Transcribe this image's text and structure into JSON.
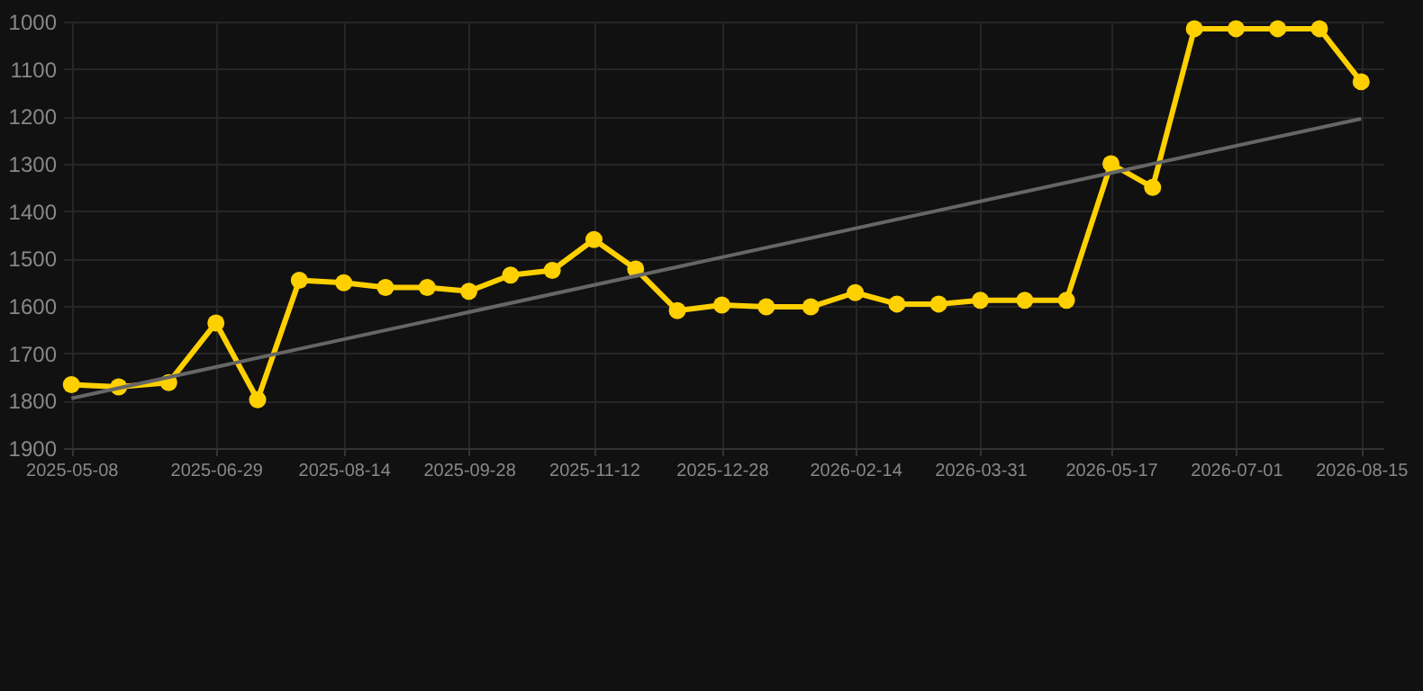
{
  "chart_data": {
    "type": "line",
    "x": [
      "2025-05-08",
      "2025-05-25",
      "2025-06-12",
      "2025-06-29",
      "2025-07-14",
      "2025-07-29",
      "2025-08-14",
      "2025-08-29",
      "2025-09-13",
      "2025-09-28",
      "2025-10-13",
      "2025-10-28",
      "2025-11-12",
      "2025-11-27",
      "2025-12-12",
      "2025-12-28",
      "2026-01-13",
      "2026-01-29",
      "2026-02-14",
      "2026-03-01",
      "2026-03-16",
      "2026-03-31",
      "2026-04-16",
      "2026-05-01",
      "2026-05-17",
      "2026-06-01",
      "2026-06-16",
      "2026-07-01",
      "2026-07-16",
      "2026-07-31",
      "2026-08-15"
    ],
    "series": [
      {
        "color": "#ffd000",
        "marker": "circle",
        "values": [
          1766,
          1771,
          1762,
          1636,
          1798,
          1546,
          1551,
          1561,
          1561,
          1569,
          1535,
          1525,
          1460,
          1522,
          1610,
          1598,
          1602,
          1602,
          1572,
          1596,
          1596,
          1588,
          1588,
          1588,
          1300,
          1350,
          1015,
          1015,
          1015,
          1015,
          1127
        ]
      },
      {
        "color": "#666666",
        "marker": "none",
        "x": [
          "2025-05-08",
          "2026-08-15"
        ],
        "values": [
          1795,
          1205
        ]
      }
    ],
    "xlim": [
      "2025-05-05",
      "2026-08-23"
    ],
    "xticks": [
      {
        "value": "2025-05-08",
        "label": "2025-05-08"
      },
      {
        "value": "2025-06-29",
        "label": "2025-06-29"
      },
      {
        "value": "2025-08-14",
        "label": "2025-08-14"
      },
      {
        "value": "2025-09-28",
        "label": "2025-09-28"
      },
      {
        "value": "2025-11-12",
        "label": "2025-11-12"
      },
      {
        "value": "2025-12-28",
        "label": "2025-12-28"
      },
      {
        "value": "2026-02-14",
        "label": "2026-02-14"
      },
      {
        "value": "2026-03-31",
        "label": "2026-03-31"
      },
      {
        "value": "2026-05-17",
        "label": "2026-05-17"
      },
      {
        "value": "2026-07-01",
        "label": "2026-07-01"
      },
      {
        "value": "2026-08-15",
        "label": "2026-08-15"
      }
    ],
    "ylim": [
      1900,
      1000
    ],
    "yticks": [
      1000,
      1100,
      1200,
      1300,
      1400,
      1500,
      1600,
      1700,
      1800,
      1900
    ],
    "grid": true
  }
}
